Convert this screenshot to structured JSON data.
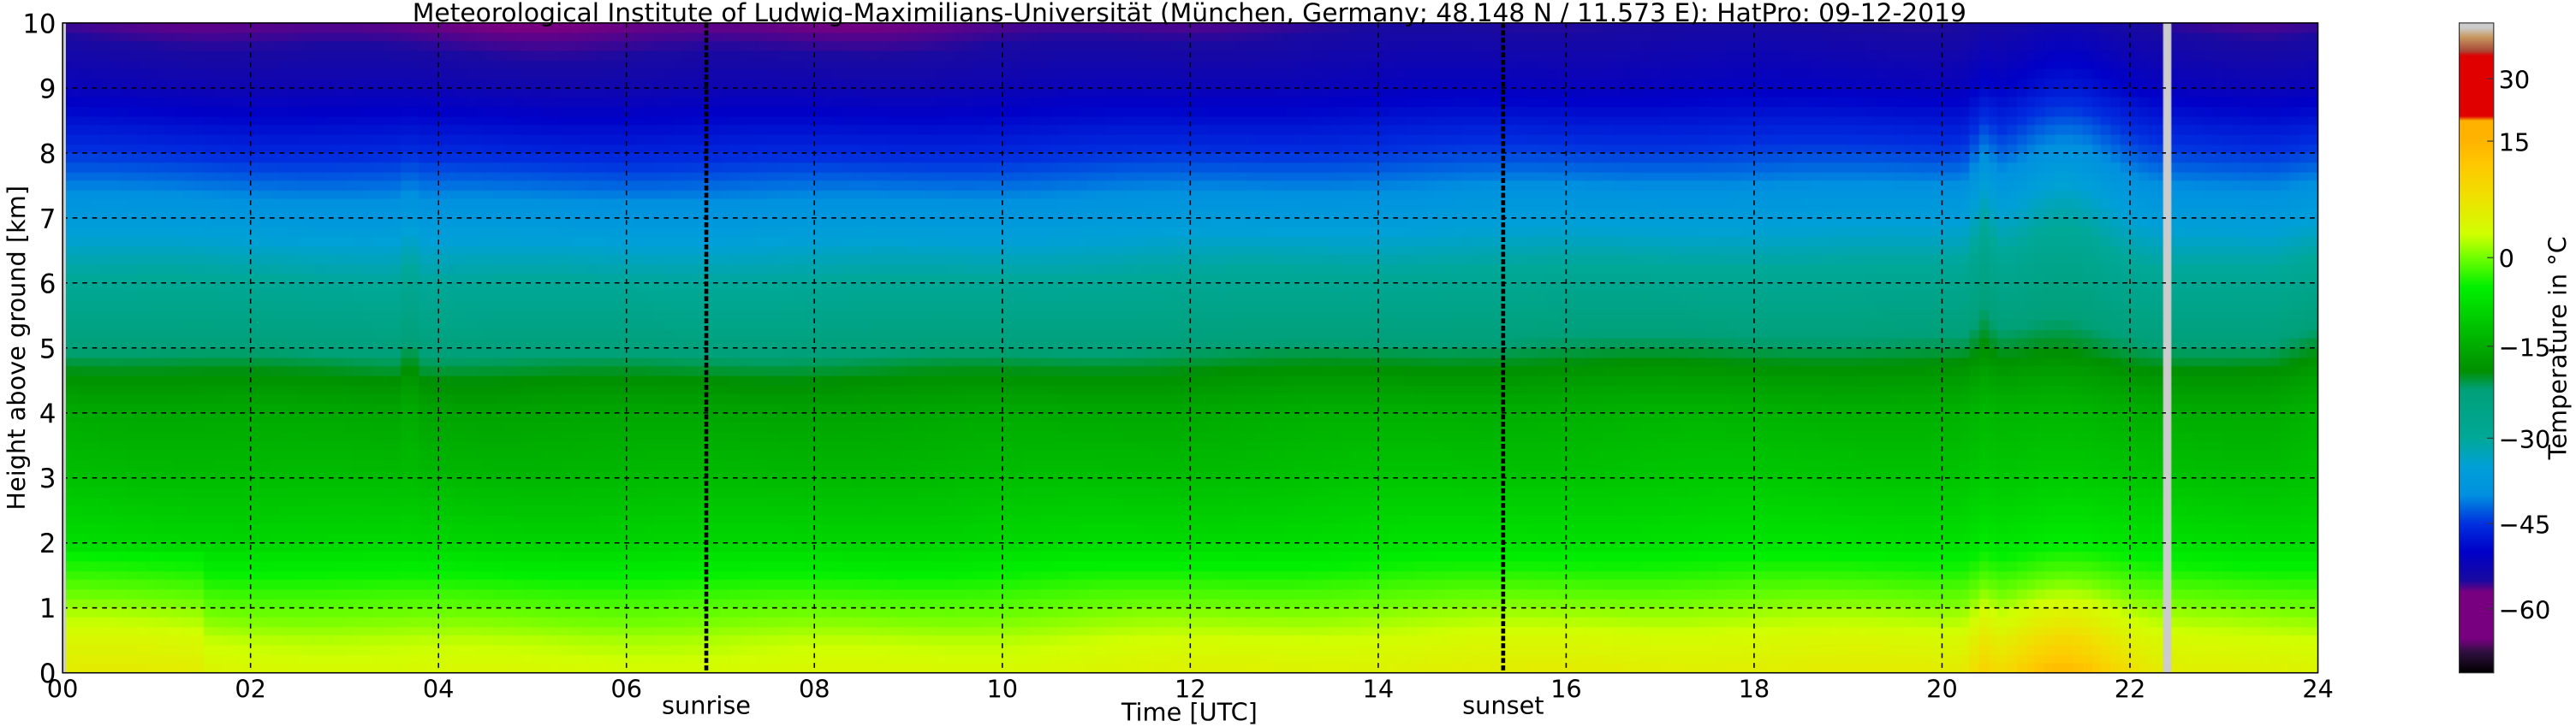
{
  "chart_data": {
    "type": "heatmap",
    "title": "Meteorological Institute of Ludwig-Maximilians-Universität (München, Germany; 48.148 N / 11.573 E):    HatPro: 09-12-2019",
    "xlabel": "Time [UTC]",
    "ylabel": "Height above ground [km]",
    "xlim": [
      0,
      24
    ],
    "ylim": [
      0,
      10
    ],
    "xticks": [
      "00",
      "02",
      "04",
      "06",
      "08",
      "10",
      "12",
      "14",
      "16",
      "18",
      "20",
      "22",
      "24"
    ],
    "yticks": [
      "0",
      "1",
      "2",
      "3",
      "4",
      "5",
      "6",
      "7",
      "8",
      "9",
      "10"
    ],
    "grid": true,
    "annotations": [
      {
        "label": "sunrise",
        "time": 6.85
      },
      {
        "label": "sunset",
        "time": 15.33
      }
    ],
    "data_gap_time": 22.4,
    "mean_profile": {
      "height_km": [
        0,
        0.5,
        1,
        1.5,
        2,
        3,
        4,
        4.5,
        5,
        6,
        7,
        8,
        9,
        10
      ],
      "temperature_c": [
        5,
        3,
        0,
        -4,
        -8,
        -12,
        -15,
        -18,
        -22,
        -29,
        -37,
        -45,
        -52,
        -56
      ]
    },
    "warm_event": {
      "time_start": 20.5,
      "time_end": 22.0,
      "peak_time": 21.3,
      "surface_temperature_c": 14
    },
    "colorbar": {
      "label": "Temperature in °C",
      "ticks": [
        30,
        15,
        0,
        -15,
        -30,
        -45,
        -60
      ],
      "tick_labels": [
        "30",
        "15",
        "0",
        "−15",
        "−30",
        "−45",
        "−60"
      ],
      "colors": [
        [
          -75,
          "#000000"
        ],
        [
          -70,
          "#301040"
        ],
        [
          -67,
          "#780080"
        ],
        [
          -57,
          "#780080"
        ],
        [
          -55,
          "#1a0aa0"
        ],
        [
          -50,
          "#0000c8"
        ],
        [
          -45,
          "#0030e0"
        ],
        [
          -40,
          "#0090e0"
        ],
        [
          -35,
          "#00a0d8"
        ],
        [
          -30,
          "#00a898"
        ],
        [
          -22,
          "#00a078"
        ],
        [
          -19,
          "#009000"
        ],
        [
          -12,
          "#00c000"
        ],
        [
          -5,
          "#00f000"
        ],
        [
          0,
          "#70ff00"
        ],
        [
          3,
          "#d0ff00"
        ],
        [
          8,
          "#f0e000"
        ],
        [
          12,
          "#ffc800"
        ],
        [
          15,
          "#ffb400"
        ],
        [
          20,
          "#ffb000"
        ],
        [
          21,
          "#e00000"
        ],
        [
          35,
          "#e00000"
        ],
        [
          36,
          "#a84838"
        ],
        [
          39,
          "#c89860"
        ],
        [
          41,
          "#cccccc"
        ]
      ]
    }
  }
}
